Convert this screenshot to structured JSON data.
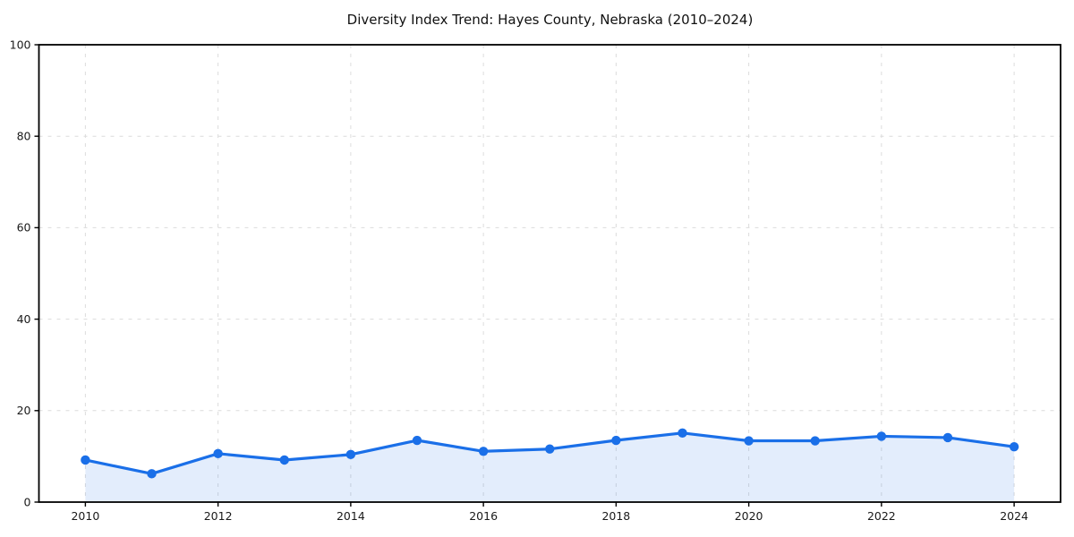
{
  "chart_data": {
    "type": "line",
    "title": "Diversity Index Trend: Hayes County, Nebraska (2010–2024)",
    "x": [
      2010,
      2011,
      2012,
      2013,
      2014,
      2015,
      2016,
      2017,
      2018,
      2019,
      2020,
      2021,
      2022,
      2023,
      2024
    ],
    "series": [
      {
        "name": "Diversity Index",
        "values": [
          9.2,
          6.2,
          10.6,
          9.2,
          10.4,
          13.5,
          11.1,
          11.6,
          13.5,
          15.1,
          13.4,
          13.4,
          14.4,
          14.1,
          12.1
        ]
      }
    ],
    "xlabel": "",
    "ylabel": "",
    "xlim": [
      2009.3,
      2024.7
    ],
    "ylim": [
      0,
      100
    ],
    "xticks": [
      "2010",
      "2012",
      "2014",
      "2016",
      "2018",
      "2020",
      "2022",
      "2024"
    ],
    "xtick_values": [
      2010,
      2012,
      2014,
      2016,
      2018,
      2020,
      2022,
      2024
    ],
    "yticks": [
      "0",
      "20",
      "40",
      "60",
      "80",
      "100"
    ],
    "ytick_values": [
      0,
      20,
      40,
      60,
      80,
      100
    ],
    "grid": true,
    "grid_style": "dashed",
    "legend": "none",
    "marker": "circle",
    "area_fill": true,
    "colors": {
      "line": "#1a6fe8",
      "area": "rgba(26,111,232,0.12)",
      "grid": "#dcdcdc",
      "axis": "#000000",
      "background": "#ffffff",
      "text": "#1a1a1a"
    }
  }
}
